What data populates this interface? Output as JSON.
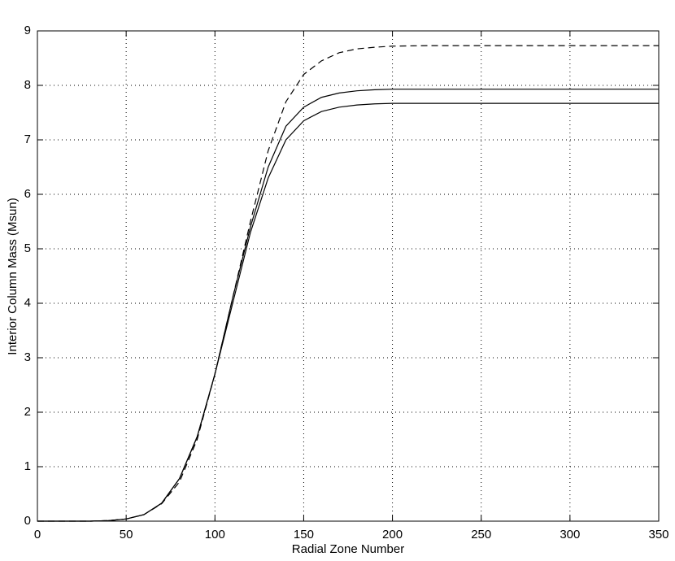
{
  "chart_data": {
    "type": "line",
    "xlabel": "Radial Zone Number",
    "ylabel": "Interior Column Mass (Msun)",
    "x": [
      0,
      10,
      20,
      30,
      40,
      50,
      60,
      70,
      80,
      90,
      100,
      110,
      120,
      130,
      140,
      150,
      160,
      170,
      180,
      190,
      200,
      220,
      250,
      300,
      350
    ],
    "series": [
      {
        "color": "#000000",
        "dashed": true,
        "values": [
          0,
          0,
          0,
          0,
          0.01,
          0.04,
          0.12,
          0.32,
          0.72,
          1.5,
          2.7,
          4.1,
          5.5,
          6.8,
          7.7,
          8.2,
          8.45,
          8.6,
          8.67,
          8.7,
          8.72,
          8.73,
          8.73,
          8.73,
          8.73
        ]
      },
      {
        "color": "#000000",
        "dashed": false,
        "values": [
          0,
          0,
          0,
          0,
          0.01,
          0.04,
          0.12,
          0.33,
          0.78,
          1.55,
          2.7,
          4.1,
          5.4,
          6.5,
          7.25,
          7.6,
          7.78,
          7.86,
          7.9,
          7.92,
          7.93,
          7.93,
          7.93,
          7.93,
          7.93
        ]
      },
      {
        "color": "#000000",
        "dashed": false,
        "values": [
          0,
          0,
          0,
          0,
          0.01,
          0.04,
          0.12,
          0.33,
          0.78,
          1.55,
          2.7,
          4.0,
          5.3,
          6.3,
          7.0,
          7.35,
          7.52,
          7.6,
          7.64,
          7.66,
          7.67,
          7.67,
          7.67,
          7.67,
          7.67
        ]
      }
    ],
    "xlim": [
      0,
      350
    ],
    "xticks": [
      0,
      50,
      100,
      150,
      200,
      250,
      300,
      350
    ],
    "ylim": [
      0,
      9
    ],
    "yticks": [
      0,
      1,
      2,
      3,
      4,
      5,
      6,
      7,
      8,
      9
    ],
    "grid": true
  }
}
